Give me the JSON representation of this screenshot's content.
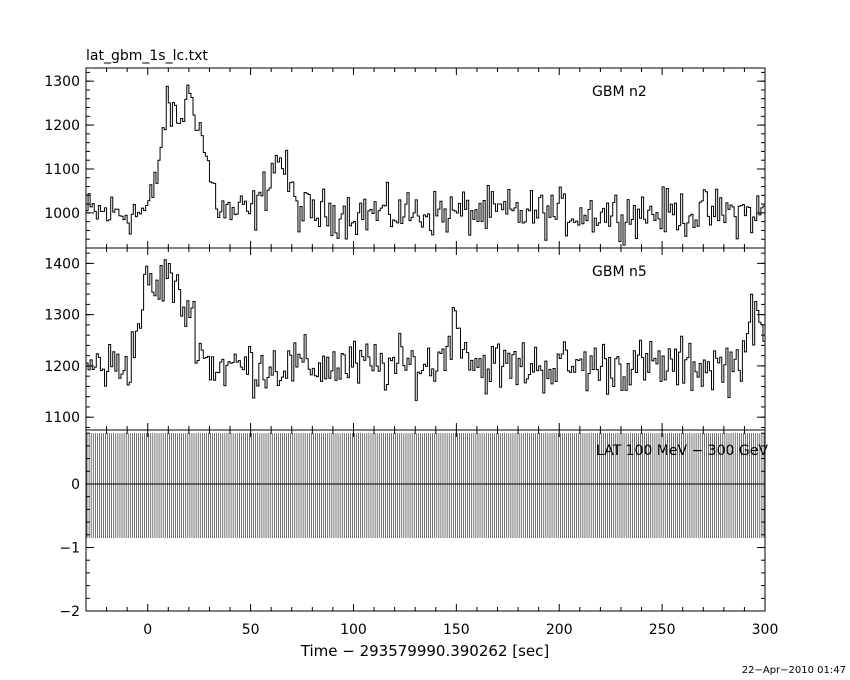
{
  "file_title": "lat_gbm_1s_lc.txt",
  "xlabel": "Time − 293579990.390262 [sec]",
  "timestamp": "22−Apr−2010 01:47",
  "chart_data": [
    {
      "type": "line",
      "panel": "top",
      "series": [
        {
          "name": "GBM n2",
          "step": "histogram"
        }
      ],
      "xlim": [
        -30,
        300
      ],
      "ylim": [
        920,
        1330
      ],
      "yticks": [
        1000,
        1100,
        1200,
        1300
      ],
      "ytick_labels": [
        "1000",
        "1100",
        "1200",
        "1300"
      ],
      "xticks": [
        0,
        50,
        100,
        150,
        200,
        250,
        300
      ],
      "baseline": 1000,
      "noise_amplitude": 45,
      "features": [
        {
          "t": 10,
          "value": 1300
        },
        {
          "t": 20,
          "value": 1310
        },
        {
          "t": 27,
          "value": 1145
        },
        {
          "t": 60,
          "value": 1070
        },
        {
          "t": 65,
          "value": 1125
        }
      ],
      "grid": false
    },
    {
      "type": "line",
      "panel": "middle",
      "series": [
        {
          "name": "GBM n5",
          "step": "histogram"
        }
      ],
      "xlim": [
        -30,
        300
      ],
      "ylim": [
        1075,
        1430
      ],
      "yticks": [
        1100,
        1200,
        1300,
        1400
      ],
      "ytick_labels": [
        "1100",
        "1200",
        "1300",
        "1400"
      ],
      "xticks": [
        0,
        50,
        100,
        150,
        200,
        250,
        300
      ],
      "baseline": 1200,
      "noise_amplitude": 45,
      "features": [
        {
          "t": 0,
          "value": 1400
        },
        {
          "t": 10,
          "value": 1430
        },
        {
          "t": 20,
          "value": 1340
        },
        {
          "t": 150,
          "value": 1310
        },
        {
          "t": 295,
          "value": 1320
        }
      ],
      "grid": false
    },
    {
      "type": "bar",
      "panel": "bottom",
      "series": [
        {
          "name": "LAT 100 MeV − 300 GeV"
        }
      ],
      "xlim": [
        -30,
        300
      ],
      "ylim": [
        -2,
        0.85
      ],
      "yticks": [
        -2,
        -1,
        0
      ],
      "ytick_labels": [
        "−2",
        "−1",
        "0"
      ],
      "xticks": [
        0,
        50,
        100,
        150,
        200,
        250,
        300
      ],
      "xtick_labels": [
        "0",
        "50",
        "100",
        "150",
        "200",
        "250",
        "300"
      ],
      "bin_width": 1,
      "bar_top": 0.8,
      "bar_bottom": -0.85,
      "zero_line": 0,
      "grid": false
    }
  ]
}
